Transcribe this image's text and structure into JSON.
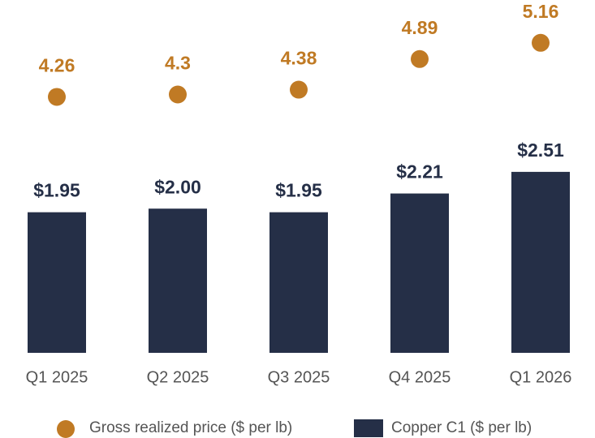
{
  "chart_data": {
    "type": "bar",
    "categories": [
      "Q1 2025",
      "Q2 2025",
      "Q3 2025",
      "Q4 2025",
      "Q1 2026"
    ],
    "series": [
      {
        "name": "Gross realized price ($ per lb)",
        "color": "#c07a24",
        "type": "scatter",
        "axis": "y2",
        "values": [
          4.26,
          4.3,
          4.38,
          4.89,
          5.16
        ]
      },
      {
        "name": "Copper C1 ($ per lb)",
        "color": "#252f47",
        "type": "bar",
        "values": [
          1.95,
          2.0,
          1.95,
          2.21,
          2.51
        ],
        "value_labels": [
          "$1.95",
          "$2.00",
          "$1.95",
          "$2.21",
          "$2.51"
        ]
      }
    ],
    "ylim": [
      0,
      4.5
    ],
    "y2lim": [
      0,
      5.4
    ]
  }
}
